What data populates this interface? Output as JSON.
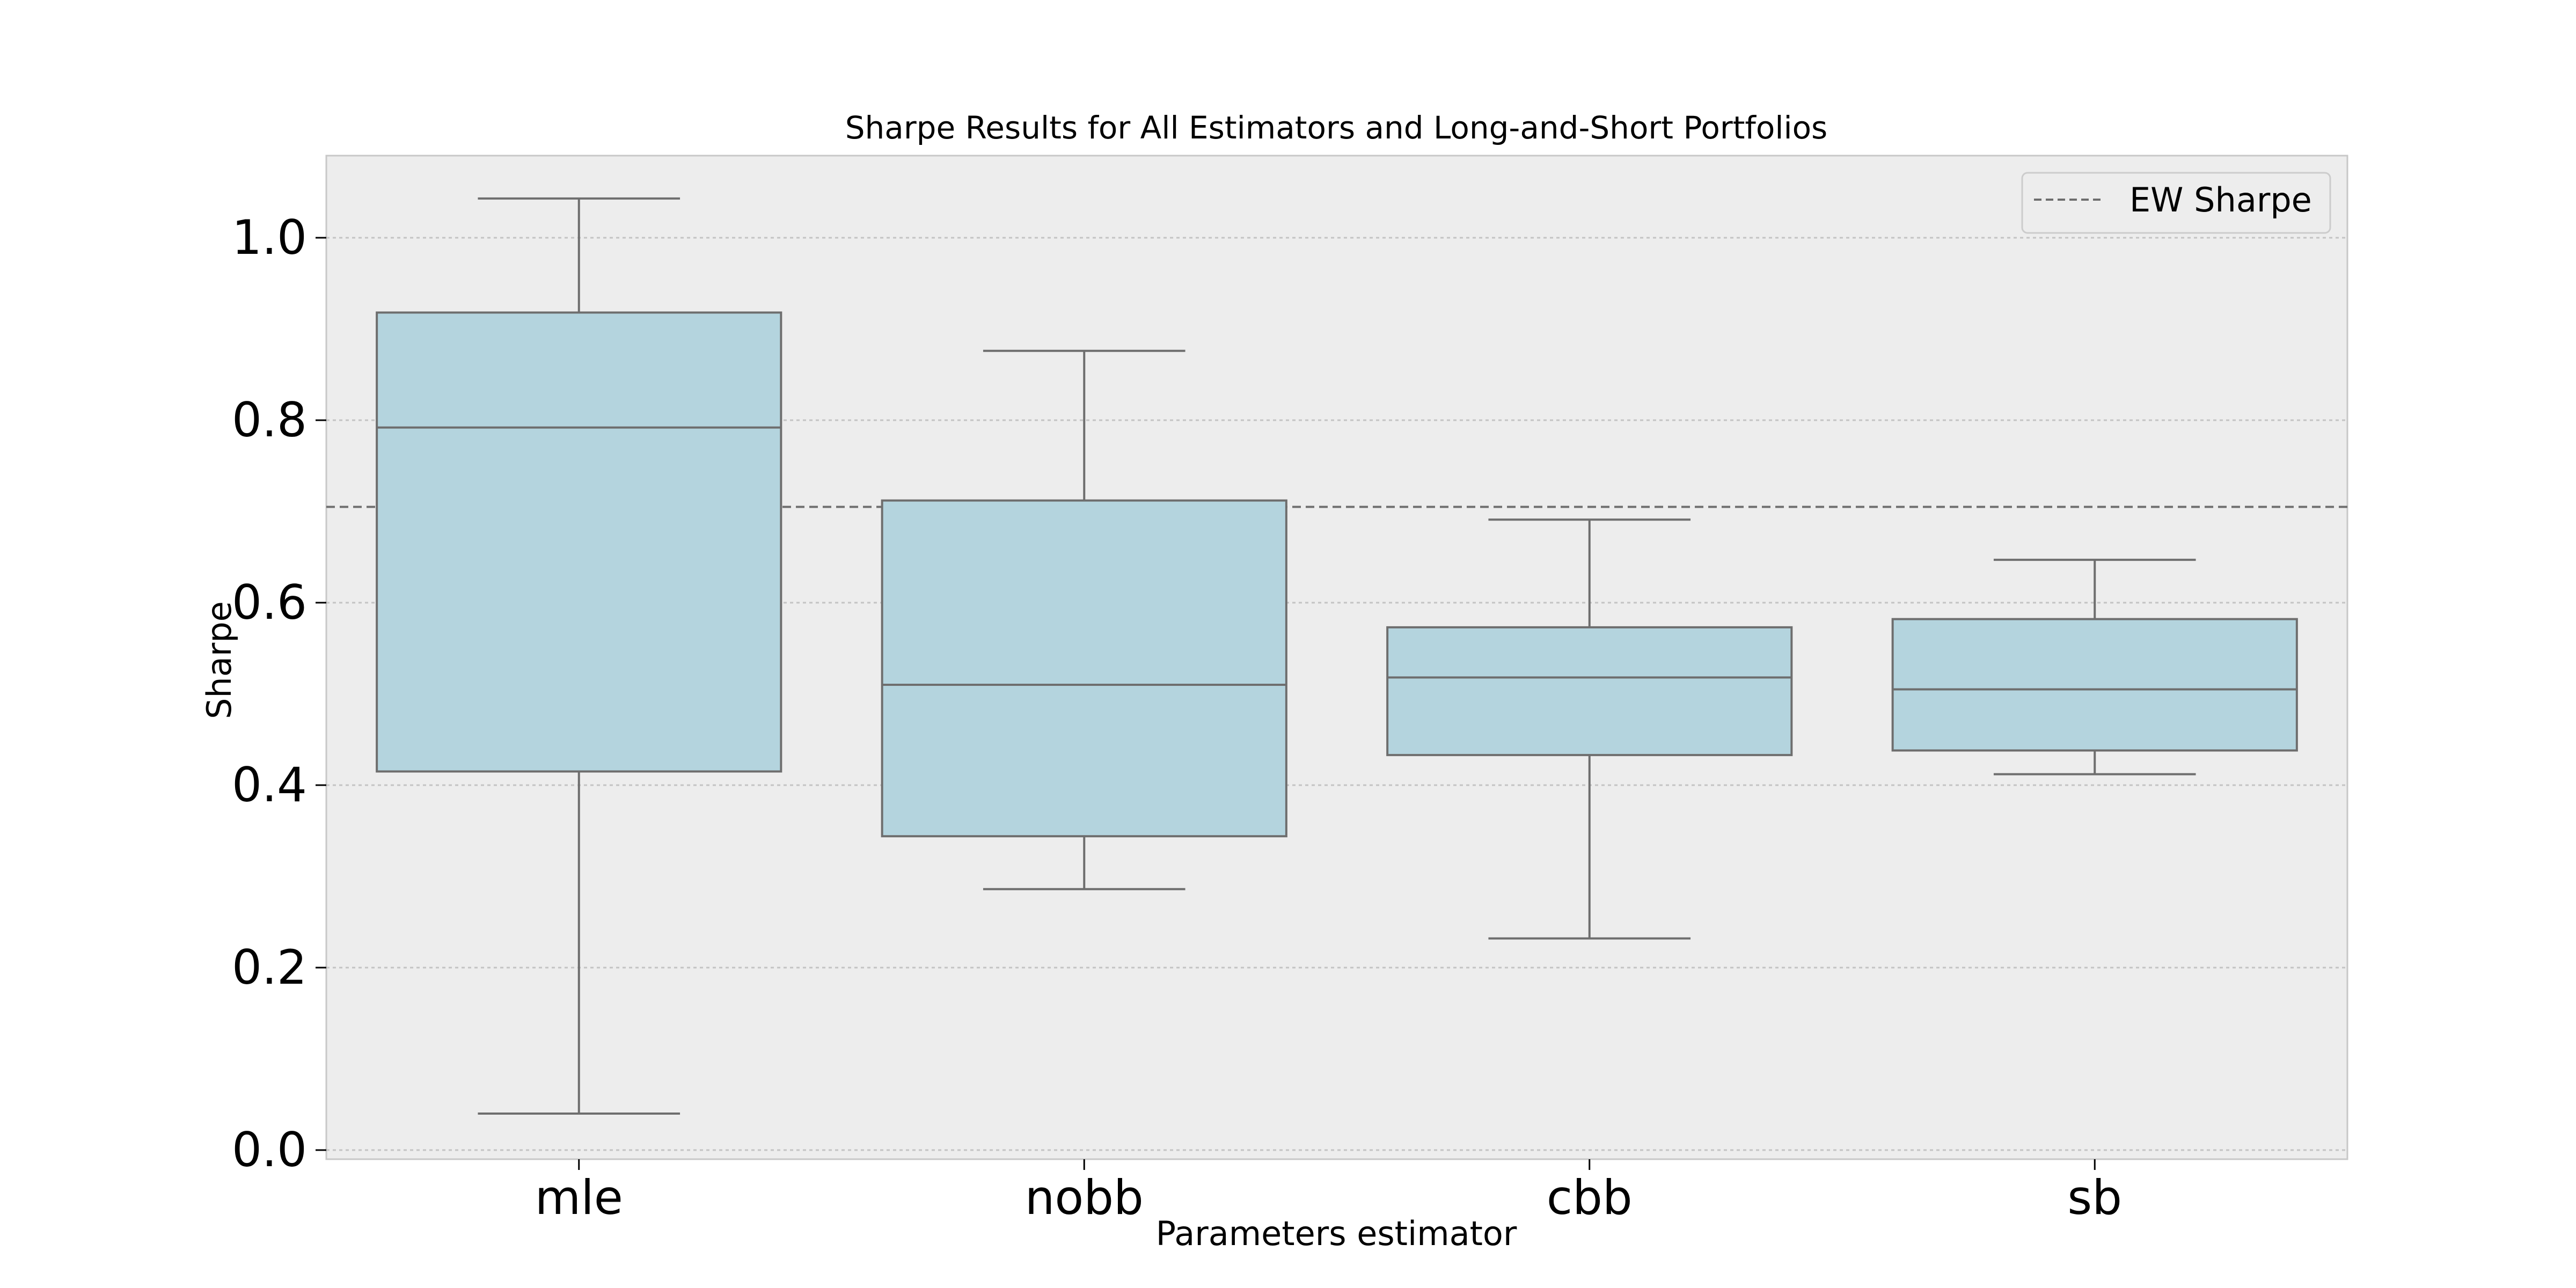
{
  "chart_data": {
    "type": "box",
    "title": "Sharpe Results for All Estimators and Long-and-Short Portfolios",
    "xlabel": "Parameters estimator",
    "ylabel": "Sharpe",
    "ylim": [
      -0.01,
      1.09
    ],
    "yticks": [
      0.0,
      0.2,
      0.4,
      0.6,
      0.8,
      1.0
    ],
    "ytick_labels": [
      "0.0",
      "0.2",
      "0.4",
      "0.6",
      "0.8",
      "1.0"
    ],
    "grid": "horizontal dotted",
    "categories": [
      "mle",
      "nobb",
      "cbb",
      "sb"
    ],
    "boxes": [
      {
        "category": "mle",
        "whisker_low": 0.04,
        "q1": 0.415,
        "median": 0.792,
        "q3": 0.918,
        "whisker_high": 1.043
      },
      {
        "category": "nobb",
        "whisker_low": 0.286,
        "q1": 0.344,
        "median": 0.51,
        "q3": 0.712,
        "whisker_high": 0.876
      },
      {
        "category": "cbb",
        "whisker_low": 0.232,
        "q1": 0.433,
        "median": 0.518,
        "q3": 0.573,
        "whisker_high": 0.691
      },
      {
        "category": "sb",
        "whisker_low": 0.412,
        "q1": 0.438,
        "median": 0.505,
        "q3": 0.582,
        "whisker_high": 0.647
      }
    ],
    "reference_line": {
      "name": "EW Sharpe",
      "value": 0.705,
      "style": "dashed"
    },
    "legend": {
      "entries": [
        "EW Sharpe"
      ],
      "position": "top-right"
    },
    "colors": {
      "box_fill": "#b4d4de",
      "box_edge": "#6e6e6e",
      "plot_bg": "#ededed",
      "grid": "#c4c4c4",
      "ref_line": "#6e6e6e"
    }
  }
}
